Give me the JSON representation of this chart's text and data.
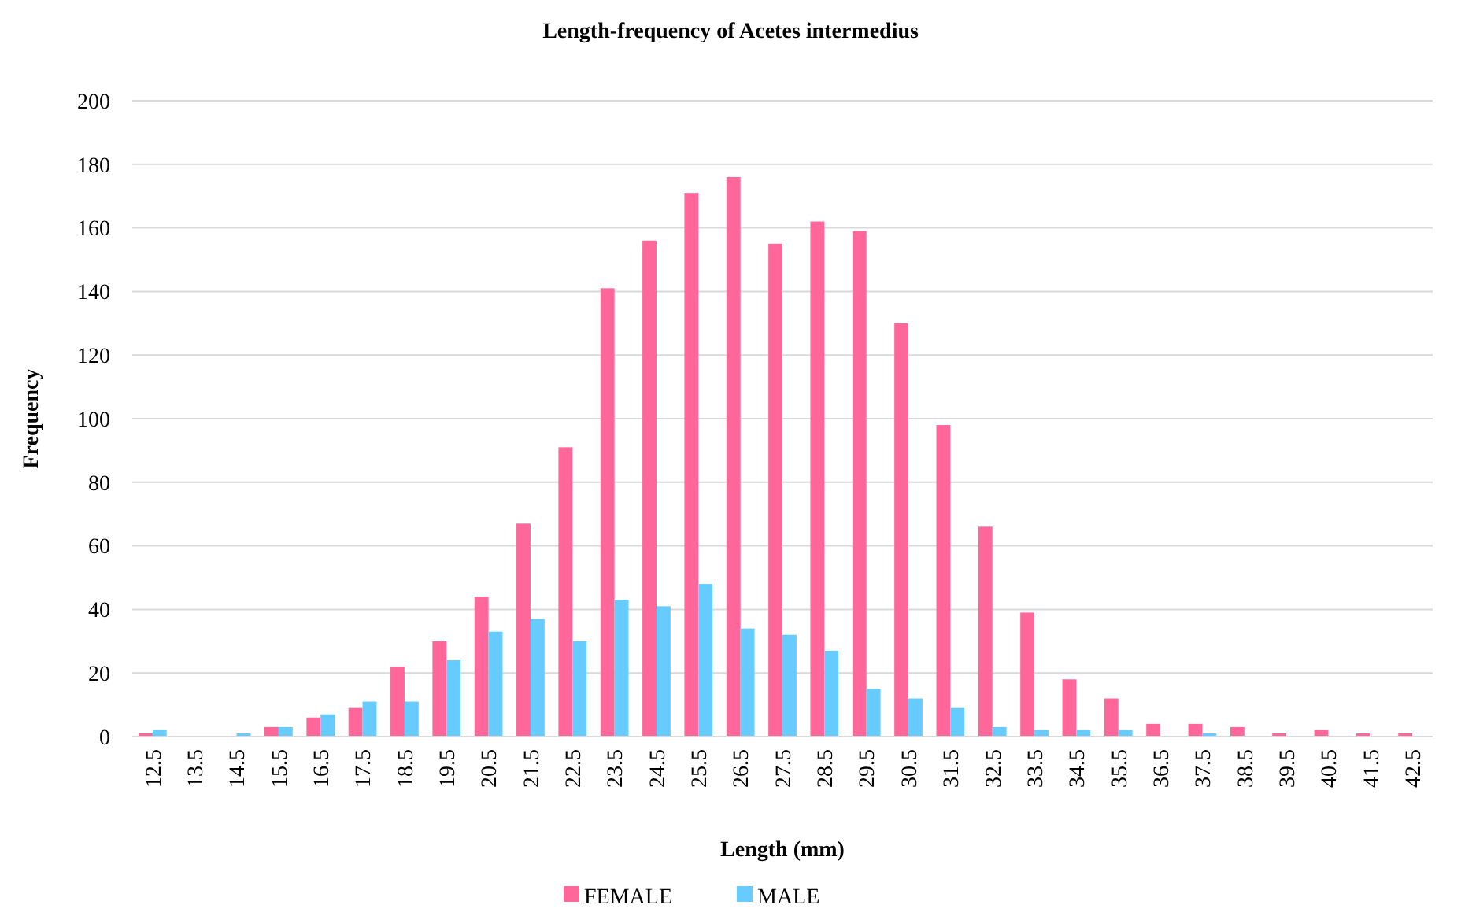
{
  "chart_data": {
    "type": "bar",
    "title": "Length-frequency of Acetes intermedius",
    "xlabel": "Length (mm)",
    "ylabel": "Frequency",
    "categories": [
      "12.5",
      "13.5",
      "14.5",
      "15.5",
      "16.5",
      "17.5",
      "18.5",
      "19.5",
      "20.5",
      "21.5",
      "22.5",
      "23.5",
      "24.5",
      "25.5",
      "26.5",
      "27.5",
      "28.5",
      "29.5",
      "30.5",
      "31.5",
      "32.5",
      "33.5",
      "34.5",
      "35.5",
      "36.5",
      "37.5",
      "38.5",
      "39.5",
      "40.5",
      "41.5",
      "42.5"
    ],
    "series": [
      {
        "name": "FEMALE",
        "color": "#ff6699",
        "values": [
          1,
          0,
          0,
          3,
          6,
          9,
          22,
          30,
          44,
          67,
          91,
          141,
          156,
          171,
          176,
          155,
          162,
          159,
          130,
          98,
          66,
          39,
          18,
          12,
          4,
          4,
          3,
          1,
          2,
          1,
          1
        ]
      },
      {
        "name": "MALE",
        "color": "#66ccff",
        "values": [
          2,
          0,
          1,
          3,
          7,
          11,
          11,
          24,
          33,
          37,
          30,
          43,
          41,
          48,
          34,
          32,
          27,
          15,
          12,
          9,
          3,
          2,
          2,
          2,
          0,
          1,
          0,
          0,
          0,
          0,
          0
        ]
      }
    ],
    "ylim": [
      0,
      200
    ],
    "yticks": [
      0,
      20,
      40,
      60,
      80,
      100,
      120,
      140,
      160,
      180,
      200
    ],
    "grid": "y",
    "legend": "bottom"
  }
}
